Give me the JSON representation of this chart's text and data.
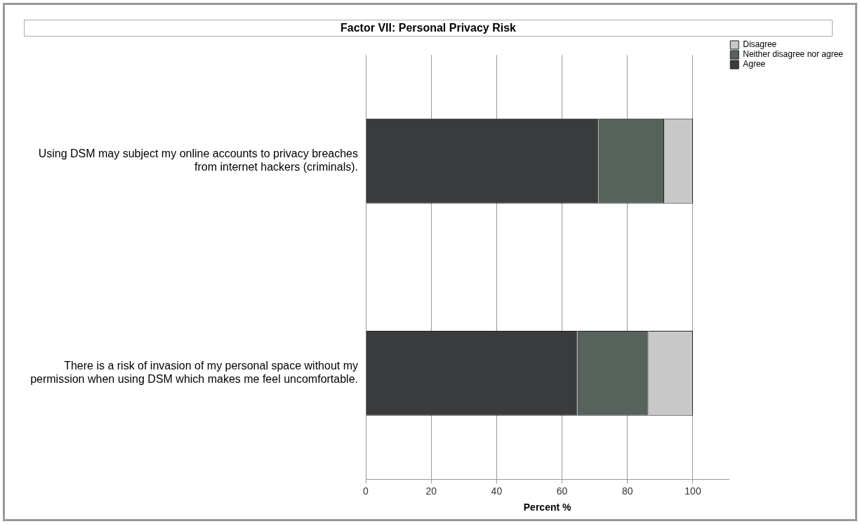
{
  "chart_data": {
    "type": "bar",
    "title": "Factor VII: Personal Privacy Risk",
    "xlabel": "Percent %",
    "orientation": "horizontal",
    "stacked": true,
    "categories": [
      "Using DSM may subject my online accounts to privacy breaches from internet hackers (criminals).",
      "There is a risk of invasion of my personal space without my permission when using DSM which makes me feel uncomfortable."
    ],
    "series": [
      {
        "name": "Agree",
        "color": "#3a3b3d",
        "values": [
          71.1,
          64.7
        ]
      },
      {
        "name": "Neither disagree nor agree",
        "color": "#56625b",
        "values": [
          20.1,
          21.7
        ]
      },
      {
        "name": "Disagree",
        "color": "#c8c8c8",
        "values": [
          8.8,
          13.6
        ]
      }
    ],
    "xlim": [
      0,
      111
    ],
    "xticks": [
      0,
      20,
      40,
      60,
      80,
      100
    ],
    "grid": "x",
    "legend": "top right"
  }
}
